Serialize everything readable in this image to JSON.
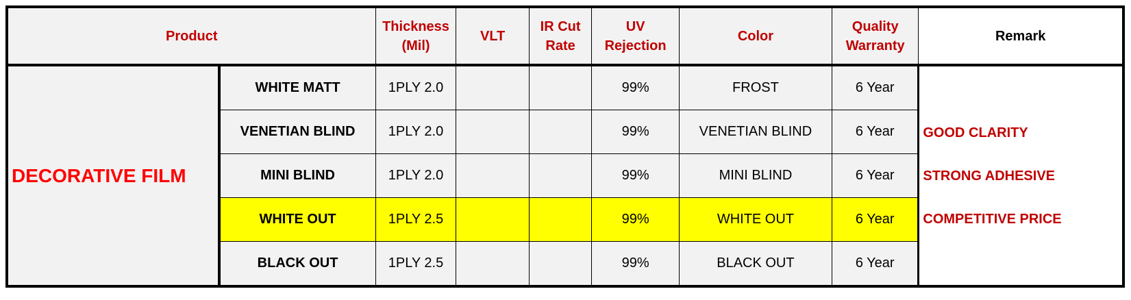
{
  "headers": {
    "product": "Product",
    "thickness": [
      "Thickness",
      "(Mil)"
    ],
    "vlt": "VLT",
    "ir": [
      "IR Cut",
      "Rate"
    ],
    "uv": [
      "UV",
      "Rejection"
    ],
    "color": "Color",
    "warranty": [
      "Quality",
      "Warranty"
    ],
    "remark": "Remark"
  },
  "category": "DECORATIVE FILM",
  "rows": [
    {
      "name": "WHITE MATT",
      "thickness": "1PLY 2.0",
      "vlt": "",
      "ir": "",
      "uv": "99%",
      "color": "FROST",
      "warranty": "6 Year"
    },
    {
      "name": "VENETIAN BLIND",
      "thickness": "1PLY 2.0",
      "vlt": "",
      "ir": "",
      "uv": "99%",
      "color": "VENETIAN BLIND",
      "warranty": "6 Year"
    },
    {
      "name": "MINI BLIND",
      "thickness": "1PLY 2.0",
      "vlt": "",
      "ir": "",
      "uv": "99%",
      "color": "MINI BLIND",
      "warranty": "6 Year"
    },
    {
      "name": "WHITE OUT",
      "thickness": "1PLY 2.5",
      "vlt": "",
      "ir": "",
      "uv": "99%",
      "color": "WHITE OUT",
      "warranty": "6 Year",
      "highlight": true
    },
    {
      "name": "BLACK OUT",
      "thickness": "1PLY 2.5",
      "vlt": "",
      "ir": "",
      "uv": "99%",
      "color": "BLACK OUT",
      "warranty": "6 Year"
    }
  ],
  "remarks": [
    "GOOD CLARITY",
    "STRONG ADHESIVE",
    "COMPETITIVE PRICE"
  ],
  "colors": {
    "header_text": "#c00000",
    "category_text": "#ff0000",
    "highlight": "#ffff00",
    "cell_bg": "#f2f2f2"
  }
}
